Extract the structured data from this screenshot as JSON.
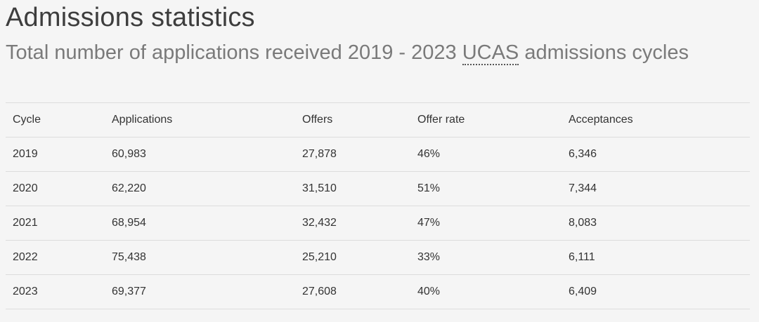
{
  "header": {
    "title": "Admissions statistics",
    "subtitle_pre": "Total number of applications received 2019 - 2023 ",
    "subtitle_abbr": "UCAS",
    "subtitle_post": " admissions cycles"
  },
  "table": {
    "columns": [
      "Cycle",
      "Applications",
      "Offers",
      "Offer rate",
      "Acceptances"
    ],
    "rows": [
      [
        "2019",
        "60,983",
        "27,878",
        "46%",
        "6,346"
      ],
      [
        "2020",
        "62,220",
        "31,510",
        "51%",
        "7,344"
      ],
      [
        "2021",
        "68,954",
        "32,432",
        "47%",
        "8,083"
      ],
      [
        "2022",
        "75,438",
        "25,210",
        "33%",
        "6,111"
      ],
      [
        "2023",
        "69,377",
        "27,608",
        "40%",
        "6,409"
      ]
    ]
  }
}
